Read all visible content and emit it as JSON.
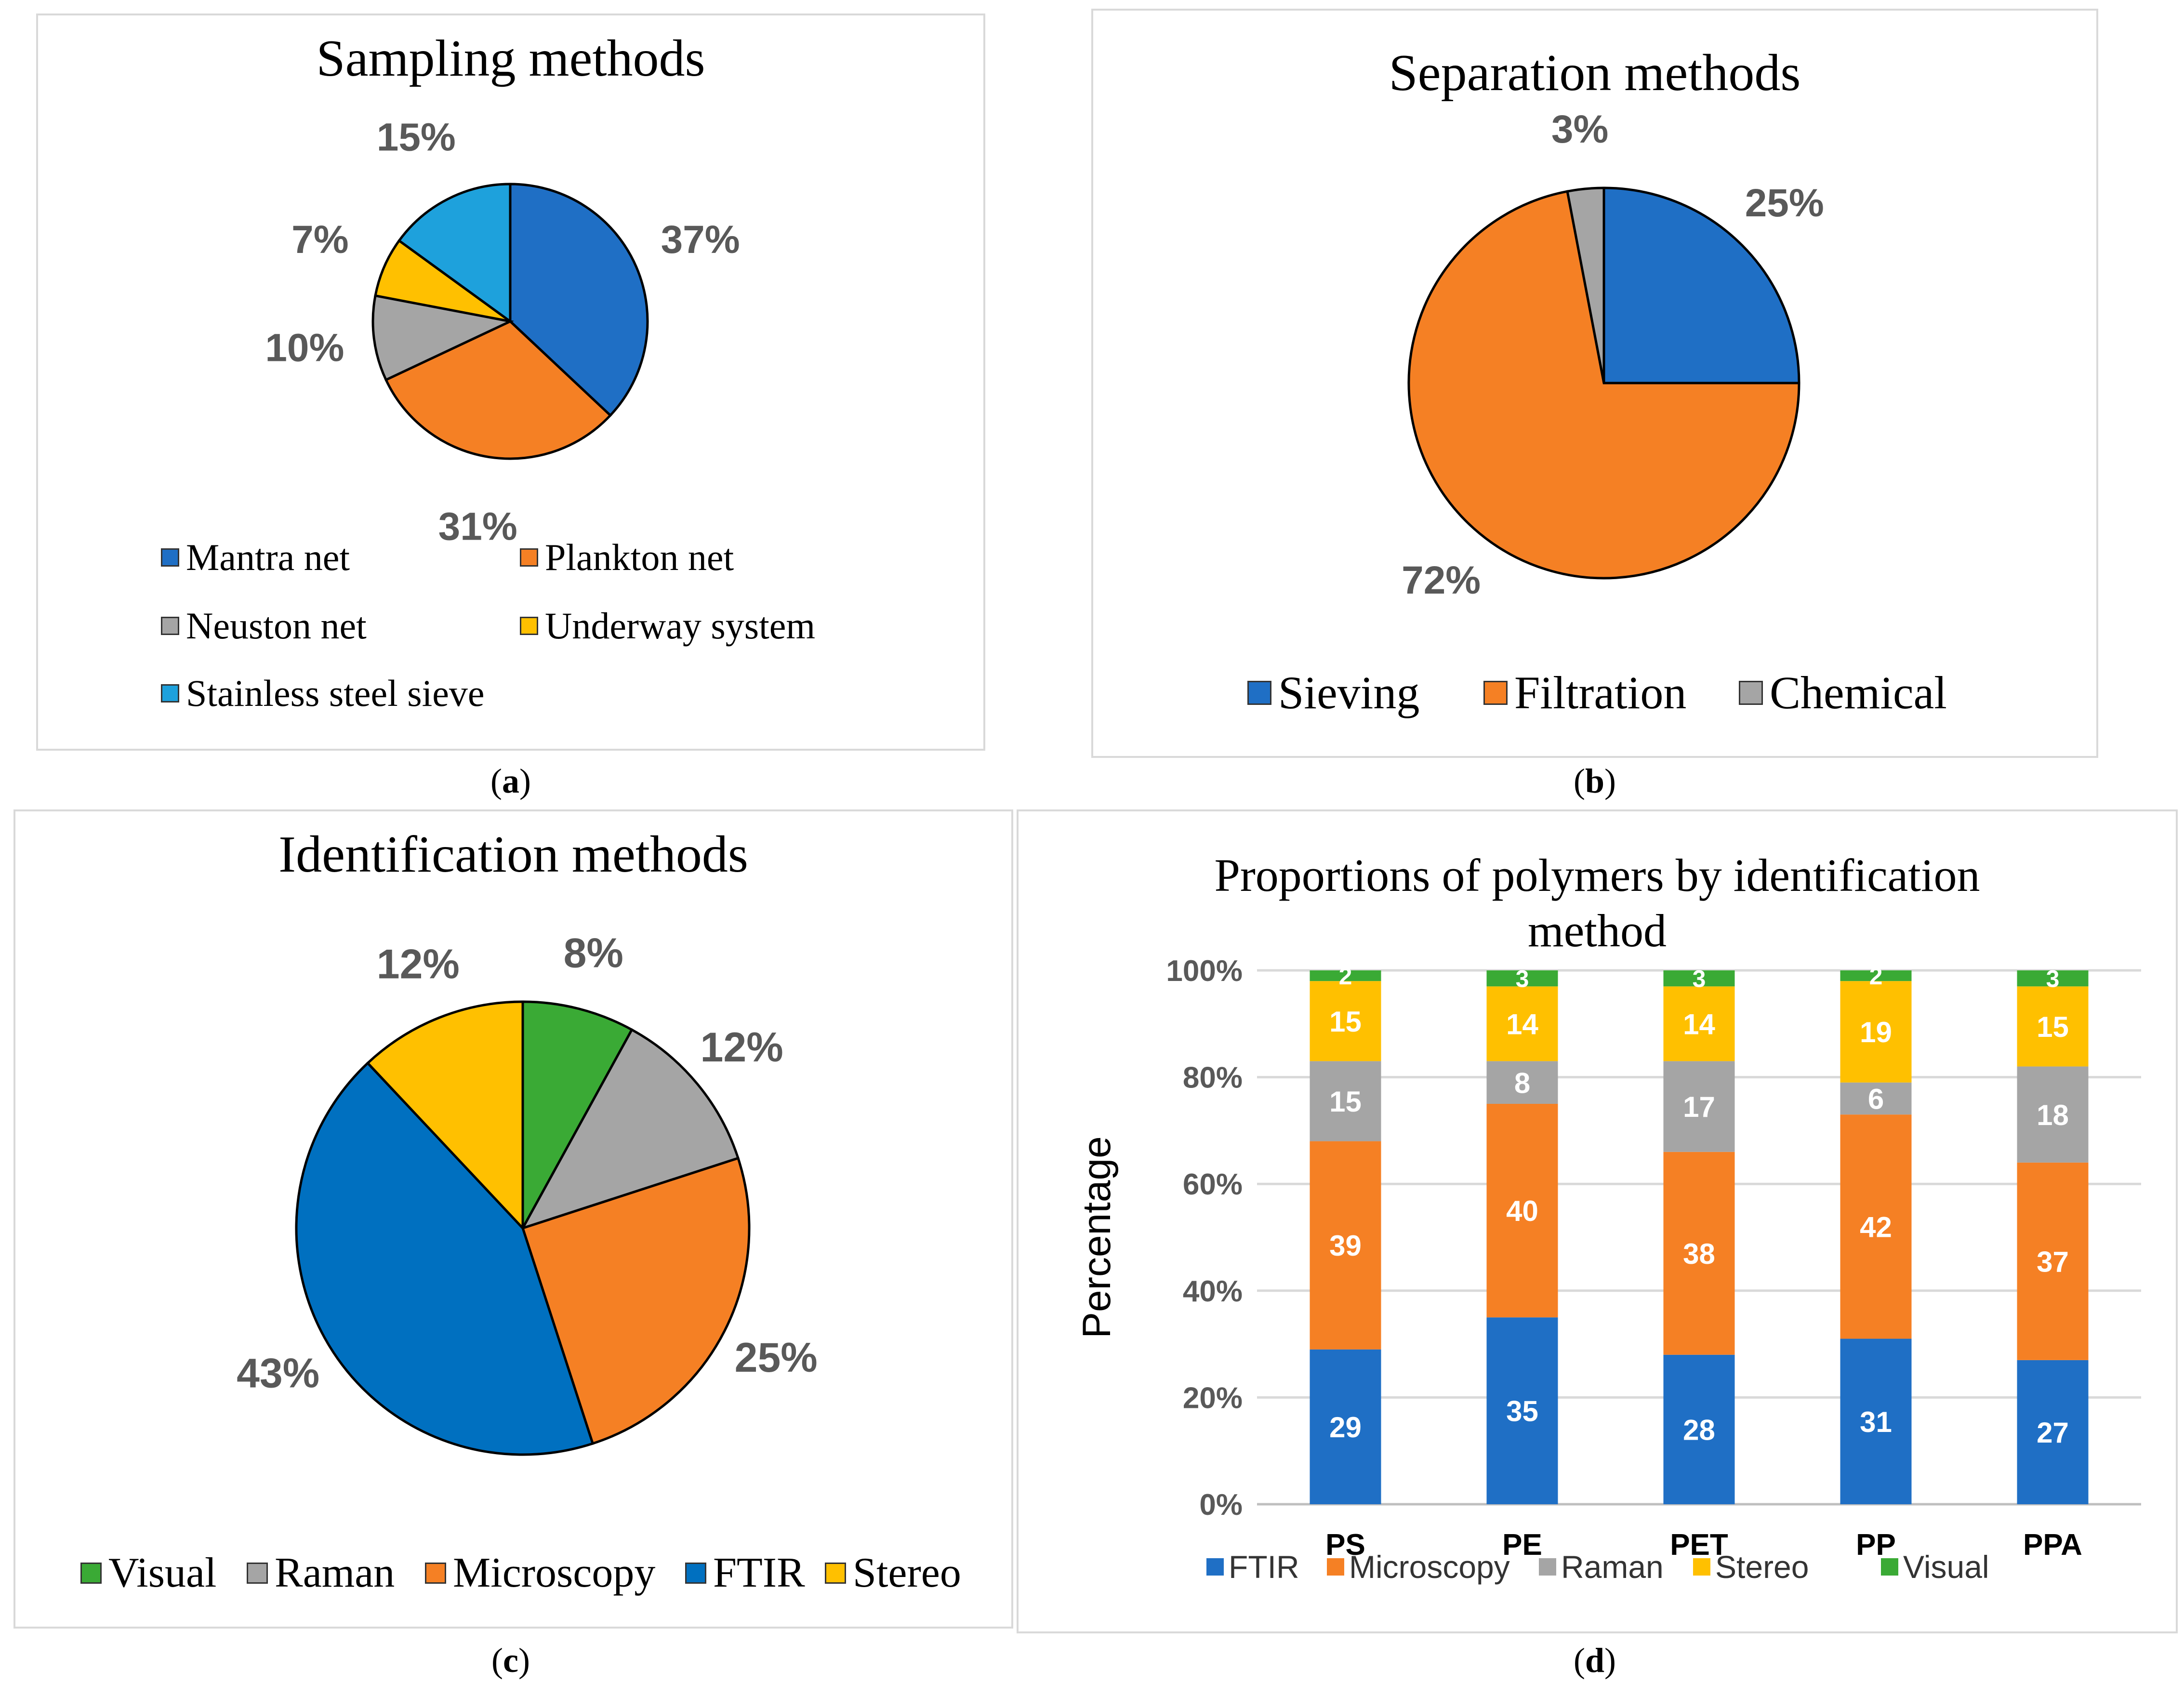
{
  "labels": {
    "a": "a",
    "b": "b",
    "c": "c",
    "d": "d"
  },
  "chart_data": [
    {
      "type": "pie",
      "title": "Sampling methods",
      "categories": [
        "Mantra net",
        "Plankton net",
        "Neuston net",
        "Underway system",
        "Stainless steel sieve"
      ],
      "values": [
        37,
        31,
        10,
        7,
        15
      ],
      "value_labels": [
        "37%",
        "31%",
        "10%",
        "7%",
        "15%"
      ],
      "colors": [
        "#1f6fc5",
        "#f58024",
        "#a5a5a5",
        "#ffc000",
        "#1ea1dc"
      ],
      "legend": "bottom"
    },
    {
      "type": "pie",
      "title": "Separation methods",
      "categories": [
        "Sieving",
        "Filtration",
        "Chemical"
      ],
      "values": [
        25,
        72,
        3
      ],
      "value_labels": [
        "25%",
        "72%",
        "3%"
      ],
      "colors": [
        "#1f6fc5",
        "#f58024",
        "#a5a5a5"
      ],
      "legend": "bottom"
    },
    {
      "type": "pie",
      "title": "Identification methods",
      "categories": [
        "Visual",
        "Raman",
        "Microscopy",
        "FTIR",
        "Stereo"
      ],
      "values": [
        8,
        12,
        25,
        43,
        12
      ],
      "value_labels": [
        "8%",
        "12%",
        "25%",
        "43%",
        "12%"
      ],
      "colors": [
        "#3aaa35",
        "#a5a5a5",
        "#f58024",
        "#0070c0",
        "#ffc000"
      ],
      "legend": "bottom"
    },
    {
      "type": "bar",
      "stacked": "percent",
      "title": "Proportions of polymers by identification method",
      "ylabel": "Percentage",
      "xlabel": "",
      "categories": [
        "PS",
        "PE",
        "PET",
        "PP",
        "PPA"
      ],
      "yticks": [
        "0%",
        "20%",
        "40%",
        "60%",
        "80%",
        "100%"
      ],
      "ylim": [
        0,
        100
      ],
      "series": [
        {
          "name": "FTIR",
          "color": "#1f6fc5",
          "values": [
            29,
            35,
            28,
            31,
            27
          ]
        },
        {
          "name": "Microscopy",
          "color": "#f58024",
          "values": [
            39,
            40,
            38,
            42,
            37
          ]
        },
        {
          "name": "Raman",
          "color": "#a5a5a5",
          "values": [
            15,
            8,
            17,
            6,
            18
          ]
        },
        {
          "name": "Stereo",
          "color": "#ffc000",
          "values": [
            15,
            14,
            14,
            19,
            15
          ]
        },
        {
          "name": "Visual",
          "color": "#3aaa35",
          "values": [
            2,
            3,
            3,
            2,
            3
          ]
        }
      ],
      "grid": true,
      "legend": "bottom"
    }
  ]
}
